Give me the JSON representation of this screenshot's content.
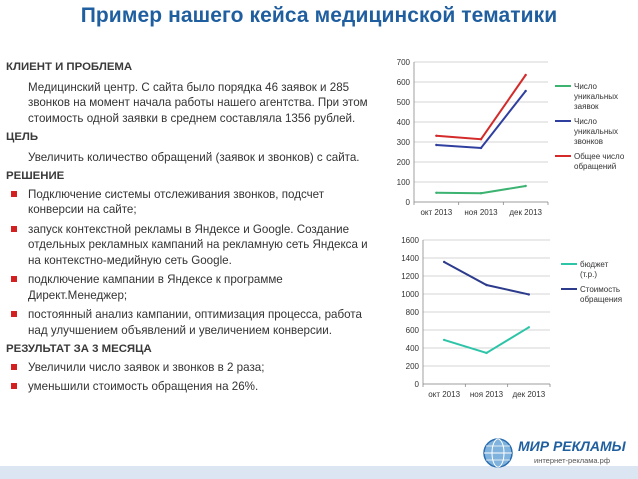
{
  "title": "Пример нашего кейса медицинской тематики",
  "sections": {
    "client": {
      "heading": "КЛИЕНТ И ПРОБЛЕМА",
      "text": "Медицинский центр. С сайта было порядка 46 заявок и 285 звонков на момент начала работы нашего агентства. При этом стоимость одной заявки в среднем составляла 1356 рублей."
    },
    "goal": {
      "heading": "ЦЕЛЬ",
      "text": "Увеличить количество обращений (заявок и звонков) с сайта."
    },
    "solution": {
      "heading": "РЕШЕНИЕ",
      "items": [
        "Подключение системы отслеживания звонков, подсчет конверсии на сайте;",
        "запуск контекстной рекламы в Яндексе и Google. Создание отдельных рекламных кампаний на рекламную сеть Яндекса и на контекстно-медийную сеть Google.",
        "подключение кампании в Яндексе к программе Директ.Менеджер;",
        "постоянный анализ кампании, оптимизация процесса, работа над улучшением объявлений и увеличением конверсии."
      ]
    },
    "result": {
      "heading": "РЕЗУЛЬТАТ ЗА 3 МЕСЯЦА",
      "items": [
        "Увеличили число заявок и звонков в 2 раза;",
        "уменьшили стоимость обращения на 26%."
      ]
    }
  },
  "logo": {
    "name": "МИР РЕКЛАМЫ",
    "subtitle": "интернет-реклама.рф"
  },
  "colors": {
    "title": "#1f5f9f",
    "bullet": "#d32020",
    "green": "#3cb371",
    "red": "#d42a2a",
    "blue": "#2f3f9f",
    "teal": "#2ec4a8",
    "navy": "#2c3b8c"
  },
  "chart_data": [
    {
      "type": "line",
      "categories": [
        "окт 2013",
        "ноя 2013",
        "дек 2013"
      ],
      "ylim": [
        0,
        700
      ],
      "yticks": [
        0,
        100,
        200,
        300,
        400,
        500,
        600,
        700
      ],
      "grid": true,
      "legend_position": "right",
      "series": [
        {
          "name": "Число уникальных заявок",
          "values": [
            46,
            44,
            80
          ],
          "color": "#3cb371"
        },
        {
          "name": "Число уникальных звонков",
          "values": [
            285,
            270,
            555
          ],
          "color": "#2f3f9f"
        },
        {
          "name": "Общее число обращений",
          "values": [
            331,
            314,
            635
          ],
          "color": "#d42a2a"
        }
      ]
    },
    {
      "type": "line",
      "categories": [
        "окт 2013",
        "ноя 2013",
        "дек 2013"
      ],
      "ylim": [
        0,
        1600
      ],
      "yticks": [
        0,
        200,
        400,
        600,
        800,
        1000,
        1200,
        1400,
        1600
      ],
      "grid": true,
      "legend_position": "right",
      "series": [
        {
          "name": "бюджет (т.р.)",
          "values": [
            490,
            345,
            630
          ],
          "color": "#2ec4a8"
        },
        {
          "name": "Стоимость обращения",
          "values": [
            1356,
            1100,
            995
          ],
          "color": "#2c3b8c"
        }
      ]
    }
  ]
}
